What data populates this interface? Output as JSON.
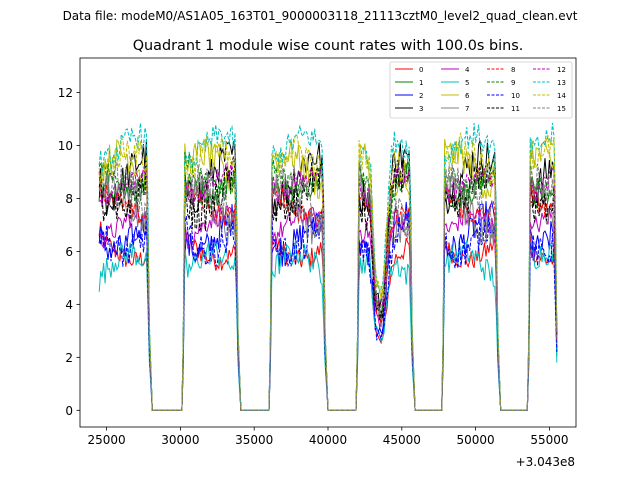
{
  "suptitle": "Data file: modeM0/AS1A05_163T01_9000003118_21113cztM0_level2_quad_clean.evt",
  "chart_data": {
    "type": "line",
    "title": "Quadrant 1 module wise count rates with 100.0s bins.",
    "xlabel": "",
    "ylabel": "",
    "x_offset_label": "+3.043e8",
    "xlim": [
      23200,
      56800
    ],
    "ylim": [
      -0.63,
      13.3
    ],
    "x_ticks": [
      25000,
      30000,
      35000,
      40000,
      45000,
      50000,
      55000
    ],
    "x_tick_labels": [
      "25000",
      "30000",
      "35000",
      "40000",
      "45000",
      "50000",
      "55000"
    ],
    "y_ticks": [
      0,
      2,
      4,
      6,
      8,
      10,
      12
    ],
    "y_tick_labels": [
      "0",
      "2",
      "4",
      "6",
      "8",
      "10",
      "12"
    ],
    "legend_position": "upper right",
    "on_segments": [
      [
        24500,
        27800
      ],
      [
        30300,
        33800
      ],
      [
        36200,
        39700
      ],
      [
        42100,
        45600
      ],
      [
        47900,
        51400
      ],
      [
        53700,
        55400
      ]
    ],
    "gaps": [
      [
        28100,
        30200
      ],
      [
        34000,
        36100
      ],
      [
        39900,
        42000
      ],
      [
        45800,
        47800
      ],
      [
        51600,
        53600
      ]
    ],
    "dip": {
      "center": 43600,
      "width": 350,
      "depth": 0.55
    },
    "series": [
      {
        "name": "0",
        "color": "#ff0000",
        "dash": "solid",
        "base": 6.1
      },
      {
        "name": "1",
        "color": "#008000",
        "dash": "solid",
        "base": 8.6
      },
      {
        "name": "2",
        "color": "#0000ff",
        "dash": "solid",
        "base": 6.7
      },
      {
        "name": "3",
        "color": "#000000",
        "dash": "solid",
        "base": 8.8
      },
      {
        "name": "4",
        "color": "#bf00bf",
        "dash": "solid",
        "base": 6.9
      },
      {
        "name": "5",
        "color": "#00bfbf",
        "dash": "solid",
        "base": 5.4
      },
      {
        "name": "6",
        "color": "#bfbf00",
        "dash": "solid",
        "base": 9.0
      },
      {
        "name": "7",
        "color": "#808080",
        "dash": "solid",
        "base": 7.6
      },
      {
        "name": "8",
        "color": "#ff0000",
        "dash": "dashed",
        "base": 7.8
      },
      {
        "name": "9",
        "color": "#008000",
        "dash": "dashed",
        "base": 8.9
      },
      {
        "name": "10",
        "color": "#0000ff",
        "dash": "dashed",
        "base": 6.6
      },
      {
        "name": "11",
        "color": "#000000",
        "dash": "dashed",
        "base": 8.2
      },
      {
        "name": "12",
        "color": "#bf00bf",
        "dash": "dashed",
        "base": 8.5
      },
      {
        "name": "13",
        "color": "#00bfbf",
        "dash": "dashed",
        "base": 9.8
      },
      {
        "name": "14",
        "color": "#bfbf00",
        "dash": "dashed",
        "base": 9.2
      },
      {
        "name": "15",
        "color": "#808080",
        "dash": "dashed",
        "base": 7.9
      }
    ]
  }
}
